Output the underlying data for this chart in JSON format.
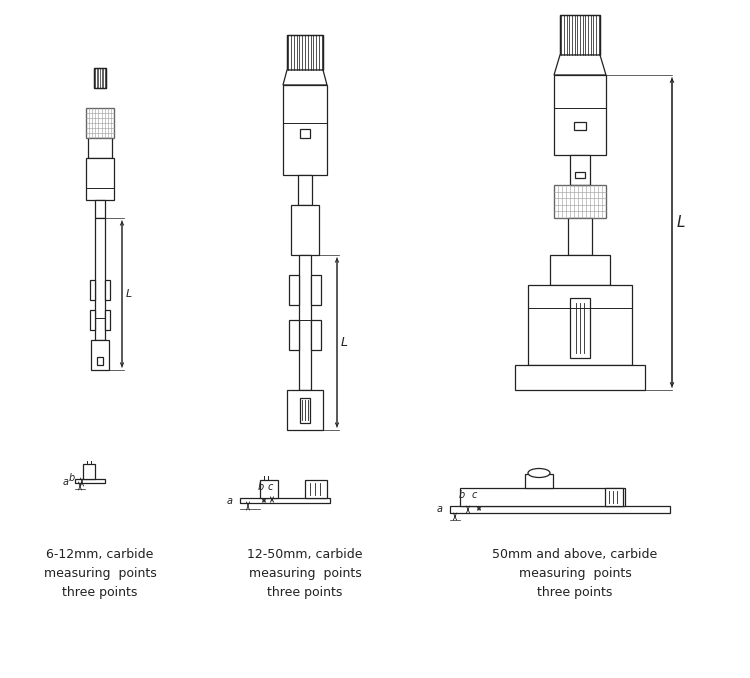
{
  "bg_color": "#ffffff",
  "line_color": "#222222",
  "labels": [
    "6-12mm, carbide\nmeasuring  points\nthree points",
    "12-50mm, carbide\nmeasuring  points\nthree points",
    "50mm and above, carbide\nmeasuring  points\nthree points"
  ],
  "fig_w": 7.5,
  "fig_h": 6.78,
  "dpi": 100
}
